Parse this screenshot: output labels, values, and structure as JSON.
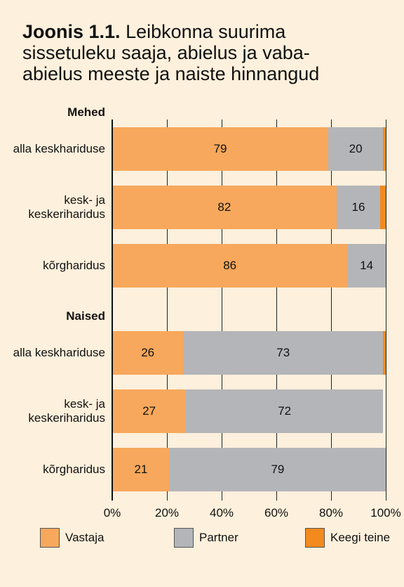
{
  "chart_data": {
    "type": "bar",
    "stacked": true,
    "orientation": "horizontal",
    "title_label": "Joonis 1.1.",
    "title": "Leibkonna suurima sissetuleku saaja, abielus ja vaba-abielus meeste ja naiste hinnangud",
    "series": [
      {
        "name": "Vastaja",
        "color": "#f7a85c"
      },
      {
        "name": "Partner",
        "color": "#b4b5b9"
      },
      {
        "name": "Keegi teine",
        "color": "#f28a1e"
      }
    ],
    "groups": [
      {
        "name": "Mehed",
        "categories": [
          "alla keskhariduse",
          "kesk- ja keskeriharidus",
          "kõrgharidus"
        ],
        "series": [
          {
            "values": [
              79,
              82,
              86
            ]
          },
          {
            "values": [
              20,
              16,
              14
            ]
          },
          {
            "values": [
              1,
              2,
              0
            ]
          }
        ]
      },
      {
        "name": "Naised",
        "categories": [
          "alla keskhariduse",
          "kesk- ja keskeriharidus",
          "kõrgharidus"
        ],
        "series": [
          {
            "values": [
              26,
              27,
              21
            ]
          },
          {
            "values": [
              73,
              72,
              79
            ]
          },
          {
            "values": [
              1,
              0,
              0
            ]
          }
        ]
      }
    ],
    "xlim": [
      0,
      100
    ],
    "xticks": [
      {
        "value": 0,
        "label": "0%"
      },
      {
        "value": 20,
        "label": "20%"
      },
      {
        "value": 40,
        "label": "40%"
      },
      {
        "value": 60,
        "label": "60%"
      },
      {
        "value": 80,
        "label": "80%"
      },
      {
        "value": 100,
        "label": "100%"
      }
    ],
    "grid": true
  }
}
